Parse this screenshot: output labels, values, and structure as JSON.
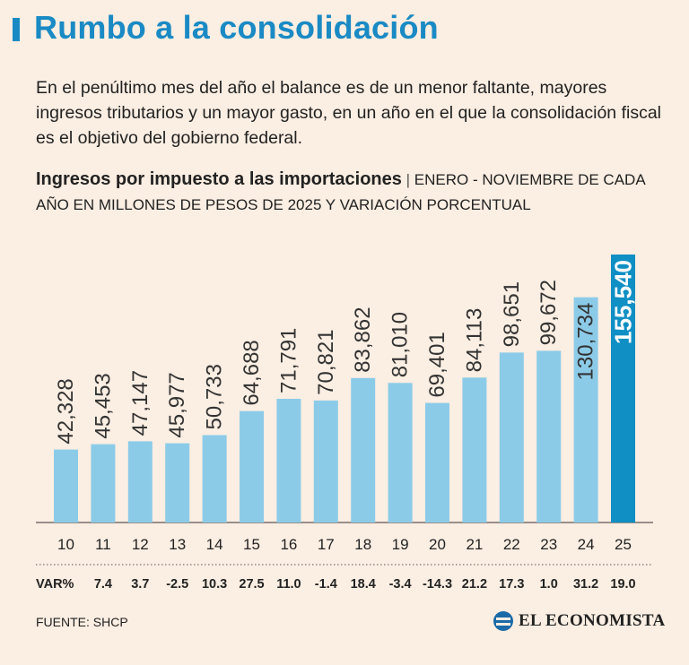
{
  "header": {
    "title": "Rumbo a la consolidación",
    "subtitle": "En el penúltimo mes del año el balance es de un menor faltante, mayores ingresos tributarios y un mayor gasto, en un año en el que la consolidación fiscal es el objetivo del gobierno federal."
  },
  "chart_data": {
    "type": "bar",
    "title": "Ingresos por impuesto a las importaciones",
    "title_separator": "|",
    "subtitle": "Enero - Noviembre de cada año en millones de pesos de 2025 y variación porcentual",
    "categories": [
      "10",
      "11",
      "12",
      "13",
      "14",
      "15",
      "16",
      "17",
      "18",
      "19",
      "20",
      "21",
      "22",
      "23",
      "24",
      "25"
    ],
    "values": [
      42328,
      45453,
      47147,
      45977,
      50733,
      64688,
      71791,
      70821,
      83862,
      81010,
      69401,
      84113,
      98651,
      99672,
      130734,
      155540
    ],
    "value_labels": [
      "42,328",
      "45,453",
      "47,147",
      "45,977",
      "50,733",
      "64,688",
      "71,791",
      "70,821",
      "83,862",
      "81,010",
      "69,401",
      "84,113",
      "98,651",
      "99,672",
      "130,734",
      "155,540"
    ],
    "var_label": "VAR%",
    "var_values": [
      "",
      "7.4",
      "3.7",
      "-2.5",
      "10.3",
      "27.5",
      "11.0",
      "-1.4",
      "18.4",
      "-3.4",
      "-14.3",
      "21.2",
      "17.3",
      "1.0",
      "31.2",
      "19.0"
    ],
    "ylim": [
      0,
      155540
    ],
    "colors": {
      "bar": "#8ccbe8",
      "bar_highlight": "#0f8fc4",
      "axis": "#333333",
      "highlight_label": "#ffffff"
    }
  },
  "footer": {
    "source": "FUENTE: SHCP",
    "brand": "EL ECONOMISTA"
  }
}
